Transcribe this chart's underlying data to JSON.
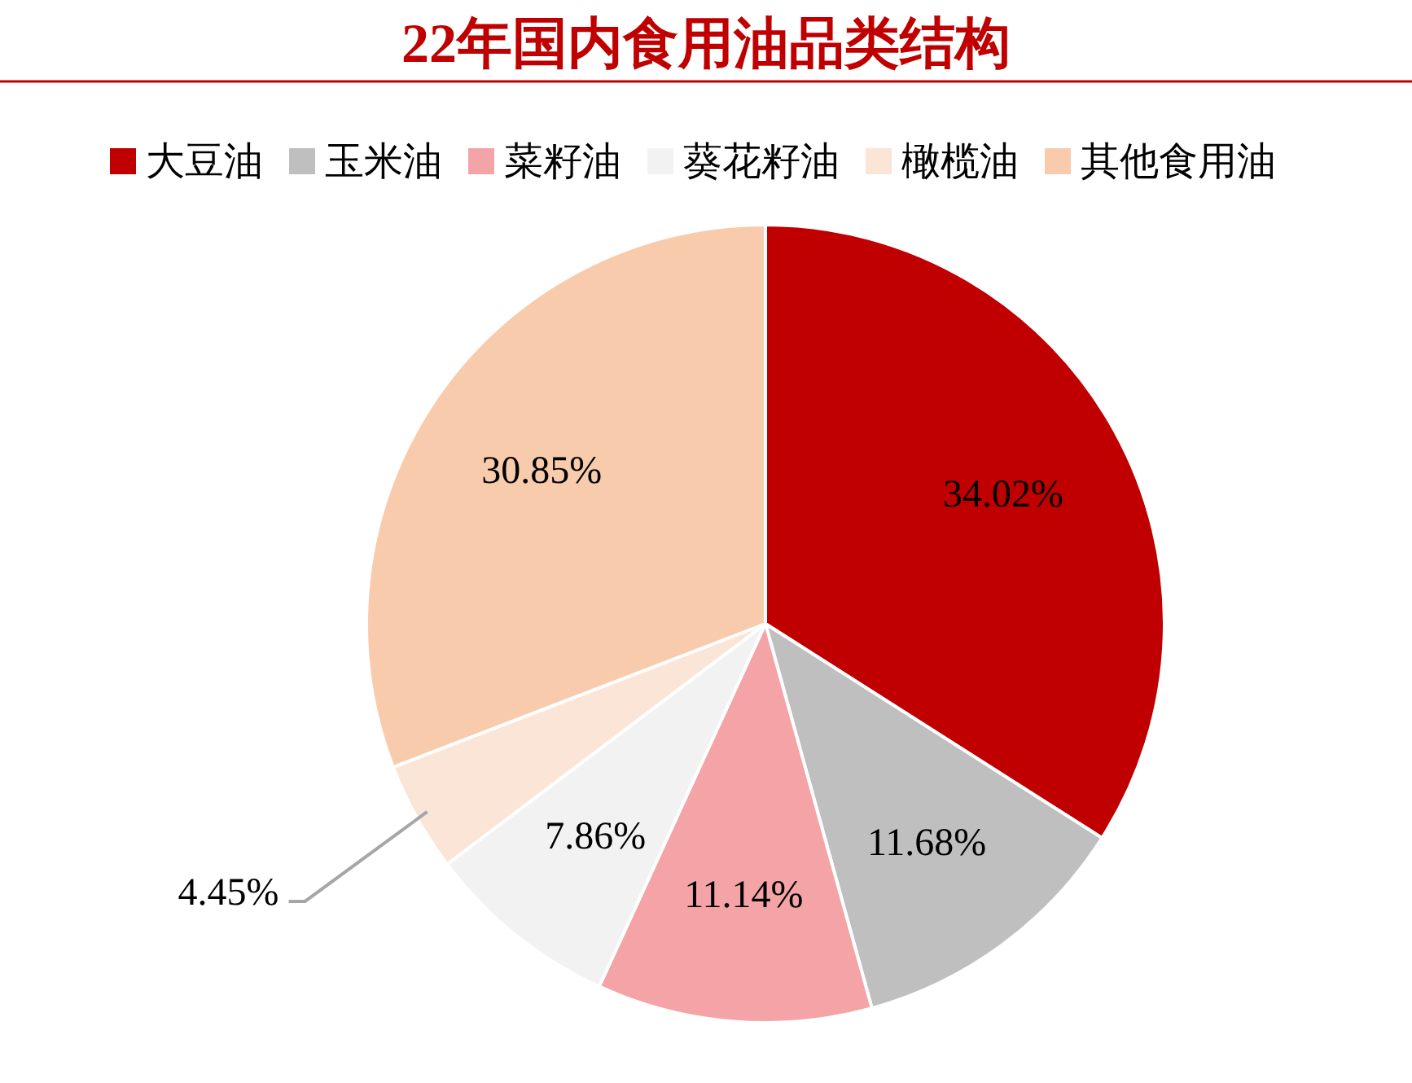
{
  "chart_data": {
    "type": "pie",
    "title": "22年国内食用油品类结构",
    "categories": [
      "大豆油",
      "玉米油",
      "菜籽油",
      "葵花籽油",
      "橄榄油",
      "其他食用油"
    ],
    "values": [
      34.02,
      11.68,
      11.14,
      7.86,
      4.45,
      30.85
    ],
    "value_labels": [
      "34.02%",
      "11.68%",
      "11.14%",
      "7.86%",
      "4.45%",
      "30.85%"
    ],
    "colors": [
      "#c00000",
      "#bfbfbf",
      "#f4a3a6",
      "#f2f2f2",
      "#fbe5d6",
      "#f8cbad"
    ],
    "legend": "top"
  }
}
